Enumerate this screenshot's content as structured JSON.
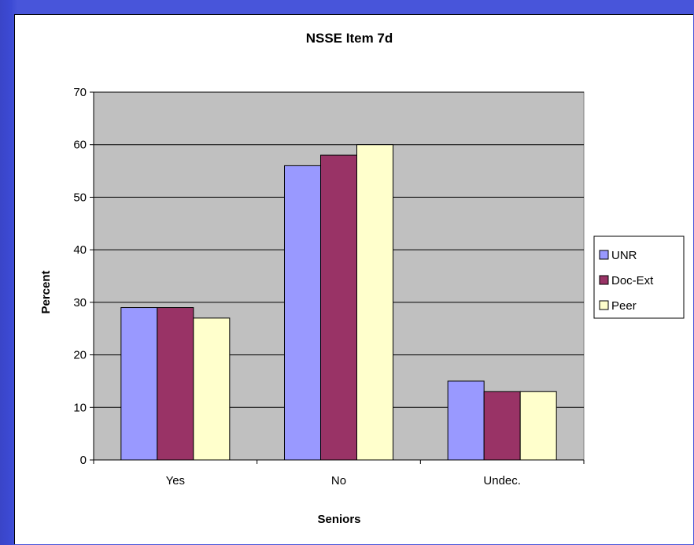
{
  "chart_data": {
    "type": "bar",
    "title": "NSSE Item 7d",
    "xlabel": "Seniors",
    "ylabel": "Percent",
    "categories": [
      "Yes",
      "No",
      "Undec."
    ],
    "series": [
      {
        "name": "UNR",
        "values": [
          29,
          56,
          15
        ],
        "color": "#9999ff"
      },
      {
        "name": "Doc-Ext",
        "values": [
          29,
          58,
          13
        ],
        "color": "#993366"
      },
      {
        "name": "Peer",
        "values": [
          27,
          60,
          13
        ],
        "color": "#ffffcc"
      }
    ],
    "ylim": [
      0,
      70
    ],
    "yticks": [
      0,
      10,
      20,
      30,
      40,
      50,
      60,
      70
    ],
    "grid": true,
    "plot_background": "#c0c0c0",
    "legend": "right"
  }
}
